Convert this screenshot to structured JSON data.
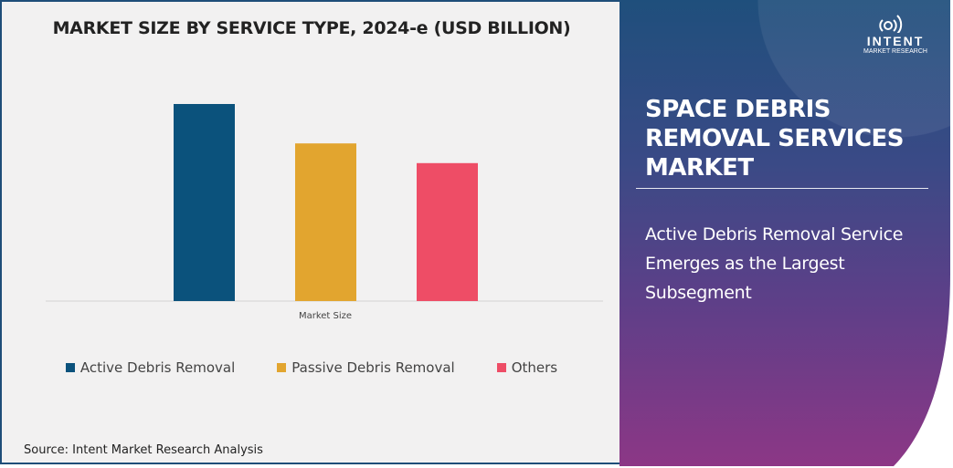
{
  "left_panel": {
    "source": "Source: Intent Market Research Analysis"
  },
  "chart_data": {
    "type": "bar",
    "title": "MARKET SIZE BY SERVICE TYPE, 2024-e (USD BILLION)",
    "categories": [
      "Market Size"
    ],
    "series": [
      {
        "name": "Active Debris Removal",
        "values": [
          100
        ],
        "color": "#0b527c"
      },
      {
        "name": "Passive Debris Removal",
        "values": [
          80
        ],
        "color": "#e2a52f"
      },
      {
        "name": "Others",
        "values": [
          70
        ],
        "color": "#ee4d66"
      }
    ],
    "value_note_units": "relative (no axis printed)",
    "ylim": [
      0,
      100
    ],
    "grid": false,
    "legend": "bottom"
  },
  "right_panel": {
    "logo": {
      "name": "INTENT",
      "sub": "MARKET RESEARCH",
      "tm": "™"
    },
    "title": "SPACE DEBRIS REMOVAL SERVICES MARKET",
    "subtitle": "Active Debris Removal Service Emerges as the Largest Subsegment"
  }
}
